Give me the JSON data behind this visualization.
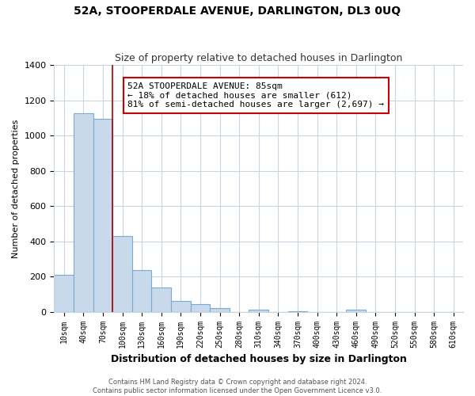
{
  "title": "52A, STOOPERDALE AVENUE, DARLINGTON, DL3 0UQ",
  "subtitle": "Size of property relative to detached houses in Darlington",
  "xlabel": "Distribution of detached houses by size in Darlington",
  "ylabel": "Number of detached properties",
  "bin_labels": [
    "10sqm",
    "40sqm",
    "70sqm",
    "100sqm",
    "130sqm",
    "160sqm",
    "190sqm",
    "220sqm",
    "250sqm",
    "280sqm",
    "310sqm",
    "340sqm",
    "370sqm",
    "400sqm",
    "430sqm",
    "460sqm",
    "490sqm",
    "520sqm",
    "550sqm",
    "580sqm",
    "610sqm"
  ],
  "bar_values": [
    210,
    1125,
    1095,
    430,
    235,
    140,
    60,
    45,
    22,
    0,
    14,
    0,
    5,
    0,
    0,
    10,
    0,
    0,
    0,
    0,
    0
  ],
  "bar_face_color": "#c8d9ec",
  "bar_edge_color": "#7aaad0",
  "vline_color": "#aa0000",
  "annotation_text": "52A STOOPERDALE AVENUE: 85sqm\n← 18% of detached houses are smaller (612)\n81% of semi-detached houses are larger (2,697) →",
  "annotation_box_color": "#ffffff",
  "annotation_box_edge": "#cc0000",
  "ylim": [
    0,
    1400
  ],
  "yticks": [
    0,
    200,
    400,
    600,
    800,
    1000,
    1200,
    1400
  ],
  "footnote": "Contains HM Land Registry data © Crown copyright and database right 2024.\nContains public sector information licensed under the Open Government Licence v3.0.",
  "bg_color": "#ffffff",
  "grid_color": "#c8d4e0"
}
